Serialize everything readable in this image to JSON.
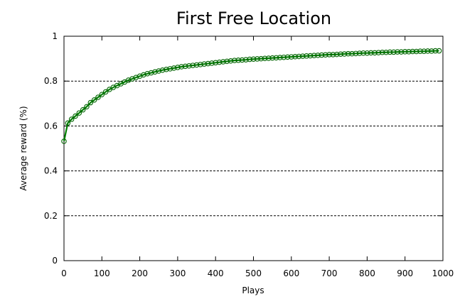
{
  "chart_data": {
    "type": "line",
    "title": "First Free Location",
    "xlabel": "Plays",
    "ylabel": "Average reward (%)",
    "xlim": [
      0,
      1000
    ],
    "ylim": [
      0,
      1
    ],
    "xticks": [
      "0",
      "100",
      "200",
      "300",
      "400",
      "500",
      "600",
      "700",
      "800",
      "900",
      "1000"
    ],
    "yticks": [
      "0",
      "0.2",
      "0.4",
      "0.6",
      "0.8",
      "1"
    ],
    "grid": "horizontal",
    "colors": {
      "series": "#008000",
      "marker_edge": "#006400"
    },
    "series": [
      {
        "marker": "circle",
        "x": [
          0,
          10,
          20,
          30,
          40,
          50,
          60,
          70,
          80,
          90,
          100,
          110,
          120,
          130,
          140,
          150,
          160,
          170,
          180,
          190,
          200,
          210,
          220,
          230,
          240,
          250,
          260,
          270,
          280,
          290,
          300,
          310,
          320,
          330,
          340,
          350,
          360,
          370,
          380,
          390,
          400,
          410,
          420,
          430,
          440,
          450,
          460,
          470,
          480,
          490,
          500,
          510,
          520,
          530,
          540,
          550,
          560,
          570,
          580,
          590,
          600,
          610,
          620,
          630,
          640,
          650,
          660,
          670,
          680,
          690,
          700,
          710,
          720,
          730,
          740,
          750,
          760,
          770,
          780,
          790,
          800,
          810,
          820,
          830,
          840,
          850,
          860,
          870,
          880,
          890,
          900,
          910,
          920,
          930,
          940,
          950,
          960,
          970,
          980,
          990
        ],
        "values": [
          0.532,
          0.613,
          0.63,
          0.644,
          0.658,
          0.672,
          0.686,
          0.704,
          0.716,
          0.728,
          0.74,
          0.752,
          0.763,
          0.772,
          0.78,
          0.788,
          0.796,
          0.804,
          0.81,
          0.816,
          0.822,
          0.828,
          0.833,
          0.837,
          0.841,
          0.845,
          0.849,
          0.852,
          0.855,
          0.858,
          0.861,
          0.864,
          0.866,
          0.868,
          0.87,
          0.872,
          0.874,
          0.876,
          0.878,
          0.88,
          0.882,
          0.884,
          0.886,
          0.888,
          0.89,
          0.892,
          0.893,
          0.894,
          0.895,
          0.897,
          0.898,
          0.899,
          0.9,
          0.901,
          0.902,
          0.903,
          0.904,
          0.905,
          0.906,
          0.907,
          0.908,
          0.909,
          0.91,
          0.911,
          0.912,
          0.913,
          0.914,
          0.915,
          0.916,
          0.917,
          0.918,
          0.918,
          0.919,
          0.92,
          0.921,
          0.922,
          0.922,
          0.923,
          0.924,
          0.925,
          0.925,
          0.926,
          0.926,
          0.927,
          0.928,
          0.928,
          0.929,
          0.929,
          0.93,
          0.93,
          0.931,
          0.931,
          0.932,
          0.932,
          0.933,
          0.933,
          0.934,
          0.934,
          0.935,
          0.935
        ]
      }
    ]
  }
}
